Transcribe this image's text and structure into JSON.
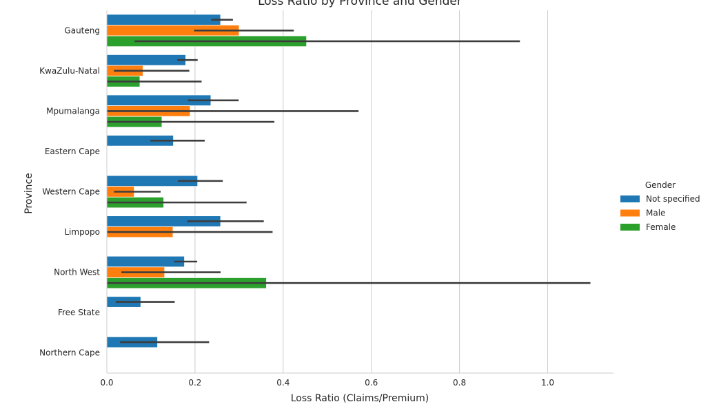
{
  "chart_data": {
    "type": "bar",
    "orientation": "horizontal",
    "title": "Loss Ratio by Province and Gender",
    "xlabel": "Loss Ratio (Claims/Premium)",
    "ylabel": "Province",
    "xlim": [
      0,
      1.15
    ],
    "xticks": [
      "0.0",
      "0.2",
      "0.4",
      "0.6",
      "0.8",
      "1.0"
    ],
    "grid": "vertical",
    "legend": {
      "title": "Gender",
      "placement": "right"
    },
    "categories": [
      "Gauteng",
      "KwaZulu-Natal",
      "Mpumalanga",
      "Eastern Cape",
      "Western Cape",
      "Limpopo",
      "North West",
      "Free State",
      "Northern Cape"
    ],
    "series": [
      {
        "name": "Not specified",
        "color": "#1f77b4",
        "values": [
          0.258,
          0.179,
          0.236,
          0.151,
          0.206,
          0.258,
          0.176,
          0.077,
          0.115
        ],
        "ci": [
          [
            0.237,
            0.286
          ],
          [
            0.16,
            0.206
          ],
          [
            0.184,
            0.299
          ],
          [
            0.099,
            0.222
          ],
          [
            0.161,
            0.263
          ],
          [
            0.182,
            0.356
          ],
          [
            0.153,
            0.205
          ],
          [
            0.02,
            0.154
          ],
          [
            0.03,
            0.232
          ]
        ]
      },
      {
        "name": "Male",
        "color": "#ff7f0e",
        "values": [
          0.3,
          0.082,
          0.189,
          null,
          0.062,
          0.15,
          0.131,
          null,
          null
        ],
        "ci": [
          [
            0.198,
            0.424
          ],
          [
            0.016,
            0.187
          ],
          [
            0.001,
            0.571
          ],
          null,
          [
            0.016,
            0.122
          ],
          [
            0.001,
            0.376
          ],
          [
            0.033,
            0.258
          ],
          null,
          null
        ]
      },
      {
        "name": "Female",
        "color": "#2ca02c",
        "values": [
          0.453,
          0.075,
          0.125,
          null,
          0.129,
          null,
          0.362,
          null,
          null
        ],
        "ci": [
          [
            0.063,
            0.937
          ],
          [
            0.001,
            0.215
          ],
          [
            0.001,
            0.38
          ],
          null,
          [
            0.001,
            0.317
          ],
          null,
          [
            0.001,
            1.097
          ],
          null,
          null
        ]
      }
    ]
  }
}
